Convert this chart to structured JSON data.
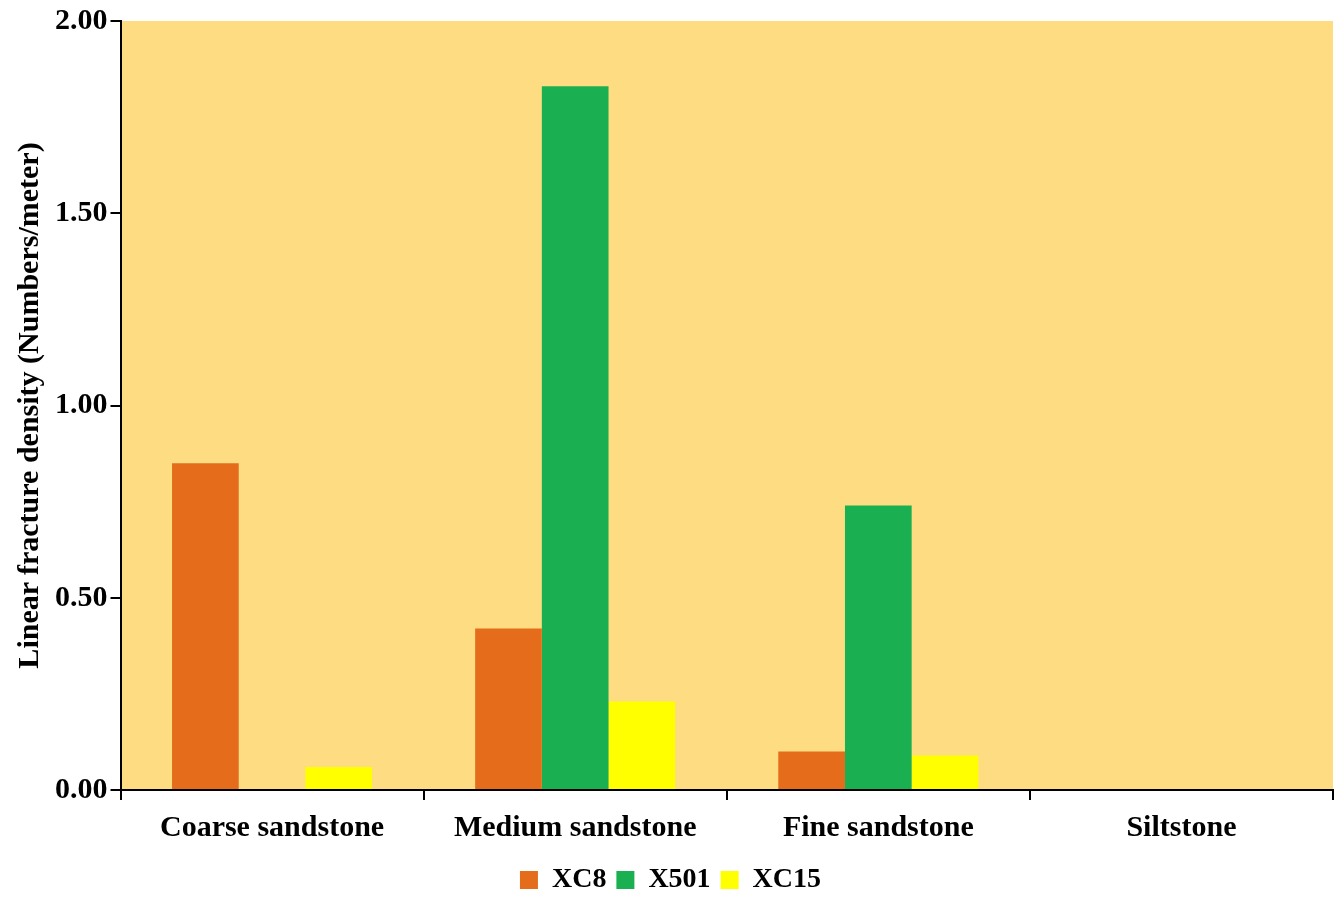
{
  "chart_data": {
    "type": "bar",
    "ylabel": "Linear fracture density (Numbers/meter)",
    "categories": [
      "Coarse sandstone",
      "Medium sandstone",
      "Fine sandstone",
      "Siltstone"
    ],
    "series": [
      {
        "name": "XC8",
        "color": "#e46c1a",
        "values": [
          0.85,
          0.42,
          0.1,
          0
        ]
      },
      {
        "name": "X501",
        "color": "#1aaf50",
        "values": [
          0,
          1.83,
          0.74,
          0
        ]
      },
      {
        "name": "XC15",
        "color": "#ffff00",
        "values": [
          0.06,
          0.23,
          0.09,
          0
        ]
      }
    ],
    "ylim": [
      0,
      2
    ],
    "yticks": [
      {
        "value": 0,
        "label": "0.00"
      },
      {
        "value": 0.5,
        "label": "0.50"
      },
      {
        "value": 1,
        "label": "1.00"
      },
      {
        "value": 1.5,
        "label": "1.50"
      },
      {
        "value": 2,
        "label": "2.00"
      }
    ],
    "grid": false,
    "legend": "bottom"
  }
}
